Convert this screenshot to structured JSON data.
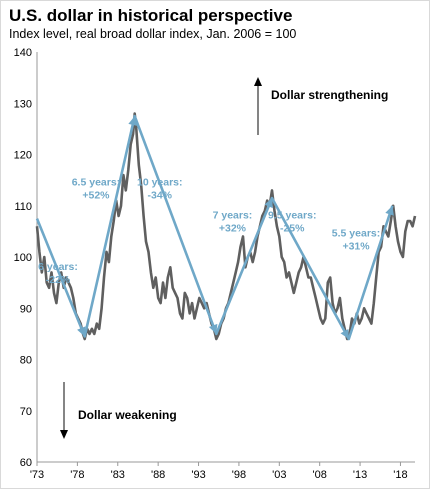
{
  "chart_data": {
    "type": "line",
    "title": "U.S. dollar in historical perspective",
    "subtitle": "Index level, real broad dollar index, Jan. 2006 = 100",
    "xlabel": "",
    "ylabel": "",
    "xlim": [
      1973,
      2019.8
    ],
    "ylim": [
      60,
      140
    ],
    "yticks": [
      60,
      70,
      80,
      90,
      100,
      110,
      120,
      130,
      140
    ],
    "xticks": [
      {
        "value": 1973,
        "label": "'73"
      },
      {
        "value": 1978,
        "label": "'78"
      },
      {
        "value": 1983,
        "label": "'83"
      },
      {
        "value": 1988,
        "label": "'88"
      },
      {
        "value": 1993,
        "label": "'93"
      },
      {
        "value": 1998,
        "label": "'98"
      },
      {
        "value": 2003,
        "label": "'03"
      },
      {
        "value": 2008,
        "label": "'08"
      },
      {
        "value": 2013,
        "label": "'13"
      },
      {
        "value": 2018,
        "label": "'18"
      }
    ],
    "grid": false,
    "colors": {
      "index": "#5f5f5f",
      "trend": "#6fa8c8",
      "text": "#000000"
    },
    "series": [
      {
        "role": "index",
        "points": [
          [
            1973.0,
            106
          ],
          [
            1973.3,
            101
          ],
          [
            1973.6,
            97
          ],
          [
            1973.9,
            100
          ],
          [
            1974.2,
            95
          ],
          [
            1974.5,
            94
          ],
          [
            1974.8,
            97
          ],
          [
            1975.1,
            93
          ],
          [
            1975.4,
            91
          ],
          [
            1975.7,
            95
          ],
          [
            1976.0,
            97
          ],
          [
            1976.3,
            94
          ],
          [
            1976.6,
            96
          ],
          [
            1976.9,
            95
          ],
          [
            1977.2,
            94
          ],
          [
            1977.5,
            92
          ],
          [
            1977.8,
            89
          ],
          [
            1978.1,
            88
          ],
          [
            1978.4,
            87
          ],
          [
            1978.7,
            85
          ],
          [
            1978.9,
            84
          ],
          [
            1979.2,
            86
          ],
          [
            1979.5,
            85
          ],
          [
            1979.8,
            86
          ],
          [
            1980.1,
            85
          ],
          [
            1980.4,
            87
          ],
          [
            1980.7,
            86
          ],
          [
            1981.0,
            90
          ],
          [
            1981.3,
            96
          ],
          [
            1981.6,
            101
          ],
          [
            1981.9,
            99
          ],
          [
            1982.2,
            104
          ],
          [
            1982.5,
            107
          ],
          [
            1982.8,
            111
          ],
          [
            1983.1,
            108
          ],
          [
            1983.4,
            110
          ],
          [
            1983.7,
            116
          ],
          [
            1984.0,
            113
          ],
          [
            1984.3,
            117
          ],
          [
            1984.6,
            122
          ],
          [
            1984.9,
            124
          ],
          [
            1985.1,
            128
          ],
          [
            1985.3,
            125
          ],
          [
            1985.6,
            118
          ],
          [
            1985.9,
            114
          ],
          [
            1986.2,
            108
          ],
          [
            1986.5,
            103
          ],
          [
            1986.8,
            101
          ],
          [
            1987.1,
            97
          ],
          [
            1987.4,
            94
          ],
          [
            1987.7,
            96
          ],
          [
            1988.0,
            92
          ],
          [
            1988.3,
            91
          ],
          [
            1988.6,
            95
          ],
          [
            1988.9,
            92
          ],
          [
            1989.2,
            96
          ],
          [
            1989.5,
            98
          ],
          [
            1989.8,
            94
          ],
          [
            1990.1,
            93
          ],
          [
            1990.4,
            92
          ],
          [
            1990.7,
            89
          ],
          [
            1991.0,
            88
          ],
          [
            1991.3,
            93
          ],
          [
            1991.6,
            92
          ],
          [
            1991.9,
            89
          ],
          [
            1992.2,
            91
          ],
          [
            1992.5,
            88
          ],
          [
            1992.8,
            90
          ],
          [
            1993.1,
            92
          ],
          [
            1993.4,
            91
          ],
          [
            1993.7,
            90
          ],
          [
            1994.0,
            91
          ],
          [
            1994.3,
            89
          ],
          [
            1994.6,
            87
          ],
          [
            1994.9,
            86
          ],
          [
            1995.2,
            84
          ],
          [
            1995.5,
            85
          ],
          [
            1995.8,
            87
          ],
          [
            1996.1,
            88
          ],
          [
            1996.4,
            90
          ],
          [
            1996.7,
            91
          ],
          [
            1997.0,
            93
          ],
          [
            1997.3,
            95
          ],
          [
            1997.6,
            97
          ],
          [
            1997.9,
            99
          ],
          [
            1998.2,
            102
          ],
          [
            1998.5,
            104
          ],
          [
            1998.8,
            98
          ],
          [
            1999.1,
            100
          ],
          [
            1999.4,
            101
          ],
          [
            1999.7,
            99
          ],
          [
            2000.0,
            101
          ],
          [
            2000.3,
            104
          ],
          [
            2000.6,
            106
          ],
          [
            2000.9,
            108
          ],
          [
            2001.2,
            109
          ],
          [
            2001.5,
            111
          ],
          [
            2001.8,
            110
          ],
          [
            2002.1,
            113
          ],
          [
            2002.4,
            109
          ],
          [
            2002.7,
            106
          ],
          [
            2003.0,
            104
          ],
          [
            2003.3,
            100
          ],
          [
            2003.6,
            99
          ],
          [
            2003.9,
            96
          ],
          [
            2004.2,
            97
          ],
          [
            2004.5,
            95
          ],
          [
            2004.8,
            93
          ],
          [
            2005.1,
            95
          ],
          [
            2005.4,
            97
          ],
          [
            2005.7,
            98
          ],
          [
            2006.0,
            100
          ],
          [
            2006.3,
            98
          ],
          [
            2006.6,
            96
          ],
          [
            2006.9,
            96
          ],
          [
            2007.2,
            94
          ],
          [
            2007.5,
            92
          ],
          [
            2007.8,
            90
          ],
          [
            2008.1,
            88
          ],
          [
            2008.4,
            87
          ],
          [
            2008.7,
            88
          ],
          [
            2009.0,
            95
          ],
          [
            2009.3,
            96
          ],
          [
            2009.6,
            91
          ],
          [
            2009.9,
            89
          ],
          [
            2010.2,
            90
          ],
          [
            2010.5,
            92
          ],
          [
            2010.8,
            88
          ],
          [
            2011.1,
            86
          ],
          [
            2011.4,
            84
          ],
          [
            2011.7,
            85
          ],
          [
            2012.0,
            88
          ],
          [
            2012.3,
            87
          ],
          [
            2012.6,
            89
          ],
          [
            2012.9,
            87
          ],
          [
            2013.2,
            88
          ],
          [
            2013.5,
            90
          ],
          [
            2013.8,
            89
          ],
          [
            2014.1,
            88
          ],
          [
            2014.4,
            87
          ],
          [
            2014.7,
            91
          ],
          [
            2015.0,
            96
          ],
          [
            2015.3,
            101
          ],
          [
            2015.6,
            102
          ],
          [
            2015.9,
            106
          ],
          [
            2016.2,
            105
          ],
          [
            2016.5,
            104
          ],
          [
            2016.8,
            107
          ],
          [
            2017.1,
            110
          ],
          [
            2017.4,
            106
          ],
          [
            2017.7,
            103
          ],
          [
            2018.0,
            101
          ],
          [
            2018.3,
            100
          ],
          [
            2018.6,
            105
          ],
          [
            2018.9,
            107
          ],
          [
            2019.2,
            107
          ],
          [
            2019.5,
            106
          ],
          [
            2019.8,
            108
          ]
        ]
      },
      {
        "role": "trend",
        "points": [
          [
            1973.0,
            107.5
          ],
          [
            1978.9,
            84.5
          ],
          [
            1985.1,
            127.5
          ],
          [
            1995.2,
            85.0
          ],
          [
            2002.1,
            111.5
          ],
          [
            2011.6,
            84.0
          ],
          [
            2017.0,
            110.0
          ]
        ]
      }
    ],
    "annotations": [
      {
        "lines": [
          "6 years:",
          "-22%"
        ],
        "x": 1975.5,
        "y": 97.5
      },
      {
        "lines": [
          "6.5 years:",
          "+52%"
        ],
        "x": 1980.2,
        "y": 114.0
      },
      {
        "lines": [
          "10 years:",
          "-34%"
        ],
        "x": 1888.5,
        "y": 0
      }
    ]
  }
}
